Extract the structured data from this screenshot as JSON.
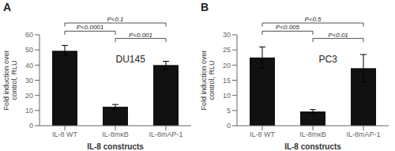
{
  "chart_data": [
    {
      "type": "bar",
      "panel_label": "A",
      "title": "DU145",
      "categories": [
        "IL-8 WT",
        "IL-8mκB",
        "IL-8mAP-1"
      ],
      "values": [
        49.5,
        12.5,
        40.0
      ],
      "errors": [
        3.5,
        1.5,
        2.5
      ],
      "color": "#111111",
      "ylim": [
        0,
        60
      ],
      "yticks": [
        0,
        10,
        20,
        30,
        40,
        50,
        60
      ],
      "y_label": "Fold induction over\ncontrol, RLU",
      "x_label": "IL-8 constructs",
      "grid": false,
      "annotations": [
        {
          "from": "IL-8 WT",
          "to": "IL-8mAP-1",
          "label": "P<0.1"
        },
        {
          "from": "IL-8 WT",
          "to": "IL-8mκB",
          "label": "P<0.0001"
        },
        {
          "from": "IL-8mκB",
          "to": "IL-8mAP-1",
          "label": "P<0.001"
        }
      ]
    },
    {
      "type": "bar",
      "panel_label": "B",
      "title": "PC3",
      "categories": [
        "IL-8 WT",
        "IL-8mκB",
        "IL-8mAP-1"
      ],
      "values": [
        22.5,
        4.7,
        19.0
      ],
      "errors": [
        3.5,
        0.6,
        4.5
      ],
      "color": "#111111",
      "ylim": [
        0,
        30
      ],
      "yticks": [
        0,
        5,
        10,
        15,
        20,
        25,
        30
      ],
      "y_label": "Fold induction over\ncontrol, RLU",
      "x_label": "IL-8 constructs",
      "grid": false,
      "annotations": [
        {
          "from": "IL-8 WT",
          "to": "IL-8mAP-1",
          "label": "P<0.5"
        },
        {
          "from": "IL-8 WT",
          "to": "IL-8mκB",
          "label": "P<0.005"
        },
        {
          "from": "IL-8mκB",
          "to": "IL-8mAP-1",
          "label": "P<0.01"
        }
      ]
    }
  ]
}
